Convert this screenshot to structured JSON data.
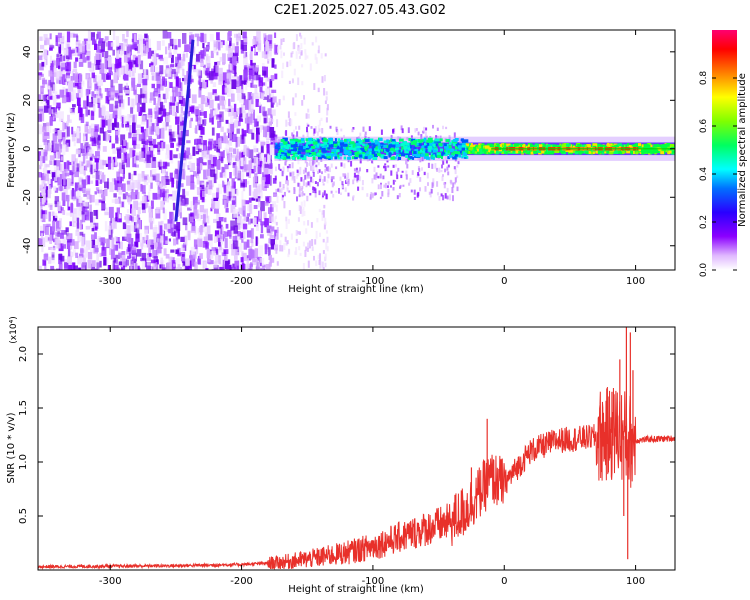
{
  "title": "C2E1.2025.027.05.43.G02",
  "chart_data": [
    {
      "type": "heatmap",
      "xlabel": "Height of straight line (km)",
      "ylabel": "Frequency (Hz)",
      "xlim": [
        -355,
        130
      ],
      "ylim": [
        -50,
        49
      ],
      "x_ticks": [
        -300,
        -200,
        -100,
        0,
        100
      ],
      "y_ticks": [
        -40,
        -20,
        0,
        20,
        40
      ],
      "colorbar": {
        "label": "Normalized spectral amplitude",
        "range": [
          0,
          1
        ],
        "ticks": [
          0.0,
          0.2,
          0.4,
          0.6,
          0.8
        ],
        "colors": [
          "#ffffff",
          "#e0b8ff",
          "#8b00ff",
          "#0000ff",
          "#00ffff",
          "#00ff00",
          "#ffff00",
          "#ff7f00",
          "#ff0000",
          "#ff0080"
        ]
      },
      "regions": [
        {
          "name": "noise",
          "x": [
            -355,
            -175
          ],
          "freq": [
            -50,
            49
          ],
          "amplitude": 0.1
        },
        {
          "name": "trace",
          "x": [
            -175,
            130
          ],
          "freq": [
            -3,
            3
          ],
          "amplitude_range": [
            0.2,
            0.9
          ]
        },
        {
          "name": "streak",
          "x_top": -237,
          "x_bottom": -250,
          "freq": [
            -30,
            45
          ],
          "amplitude": 0.2
        }
      ]
    },
    {
      "type": "line",
      "xlabel": "Height of straight line (km)",
      "ylabel": "SNR (10 * v/v)",
      "y_multiplier": "(x10⁴)",
      "xlim": [
        -355,
        130
      ],
      "ylim": [
        0,
        2.25
      ],
      "x_ticks": [
        -300,
        -200,
        -100,
        0,
        100
      ],
      "y_ticks": [
        0.5,
        1.0,
        1.5,
        2.0
      ],
      "color": "#e8302a",
      "profile": {
        "x": [
          -355,
          -300,
          -250,
          -200,
          -170,
          -150,
          -120,
          -100,
          -80,
          -60,
          -40,
          -30,
          -20,
          -10,
          0,
          10,
          20,
          40,
          60,
          80,
          85,
          90,
          95,
          100,
          110,
          130
        ],
        "y": [
          0.03,
          0.035,
          0.04,
          0.05,
          0.07,
          0.1,
          0.16,
          0.22,
          0.3,
          0.38,
          0.45,
          0.55,
          0.7,
          0.85,
          0.8,
          0.95,
          1.1,
          1.2,
          1.22,
          1.25,
          1.3,
          1.25,
          1.2,
          1.2,
          1.21,
          1.22
        ]
      },
      "spikes": [
        {
          "x": -13,
          "y": 1.4
        },
        {
          "x": -25,
          "y": 0.95
        },
        {
          "x": 82,
          "y": 1.65
        },
        {
          "x": 88,
          "y": 1.95
        },
        {
          "x": 93,
          "y": 2.25
        },
        {
          "x": 96,
          "y": 2.2
        },
        {
          "x": 98,
          "y": 1.85
        },
        {
          "x": 94,
          "y": 0.1
        },
        {
          "x": 91,
          "y": 0.5
        }
      ]
    }
  ]
}
